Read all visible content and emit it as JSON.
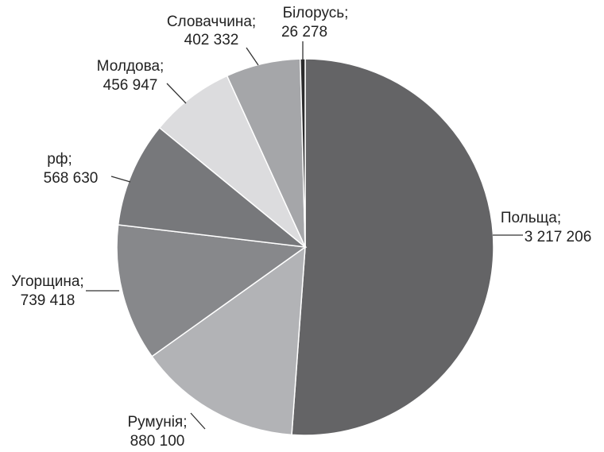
{
  "chart_data": {
    "type": "pie",
    "title": "",
    "slices": [
      {
        "label": "Польща;",
        "value": 3217206,
        "value_text": "3 217 206",
        "color": "#646466"
      },
      {
        "label": "Румунія;",
        "value": 880100,
        "value_text": "880 100",
        "color": "#b2b3b6"
      },
      {
        "label": "Угорщина;",
        "value": 739418,
        "value_text": "739 418",
        "color": "#87888b"
      },
      {
        "label": "рф;",
        "value": 568630,
        "value_text": "568 630",
        "color": "#77787b"
      },
      {
        "label": "Молдова;",
        "value": 456947,
        "value_text": "456 947",
        "color": "#dcdcde"
      },
      {
        "label": "Словаччина;",
        "value": 402332,
        "value_text": "402 332",
        "color": "#a5a6a9"
      },
      {
        "label": "Білорусь;",
        "value": 26278,
        "value_text": "26 278",
        "color": "#2b2b2c"
      }
    ],
    "start_angle": "12 o'clock",
    "direction": "clockwise",
    "legend": "none"
  }
}
